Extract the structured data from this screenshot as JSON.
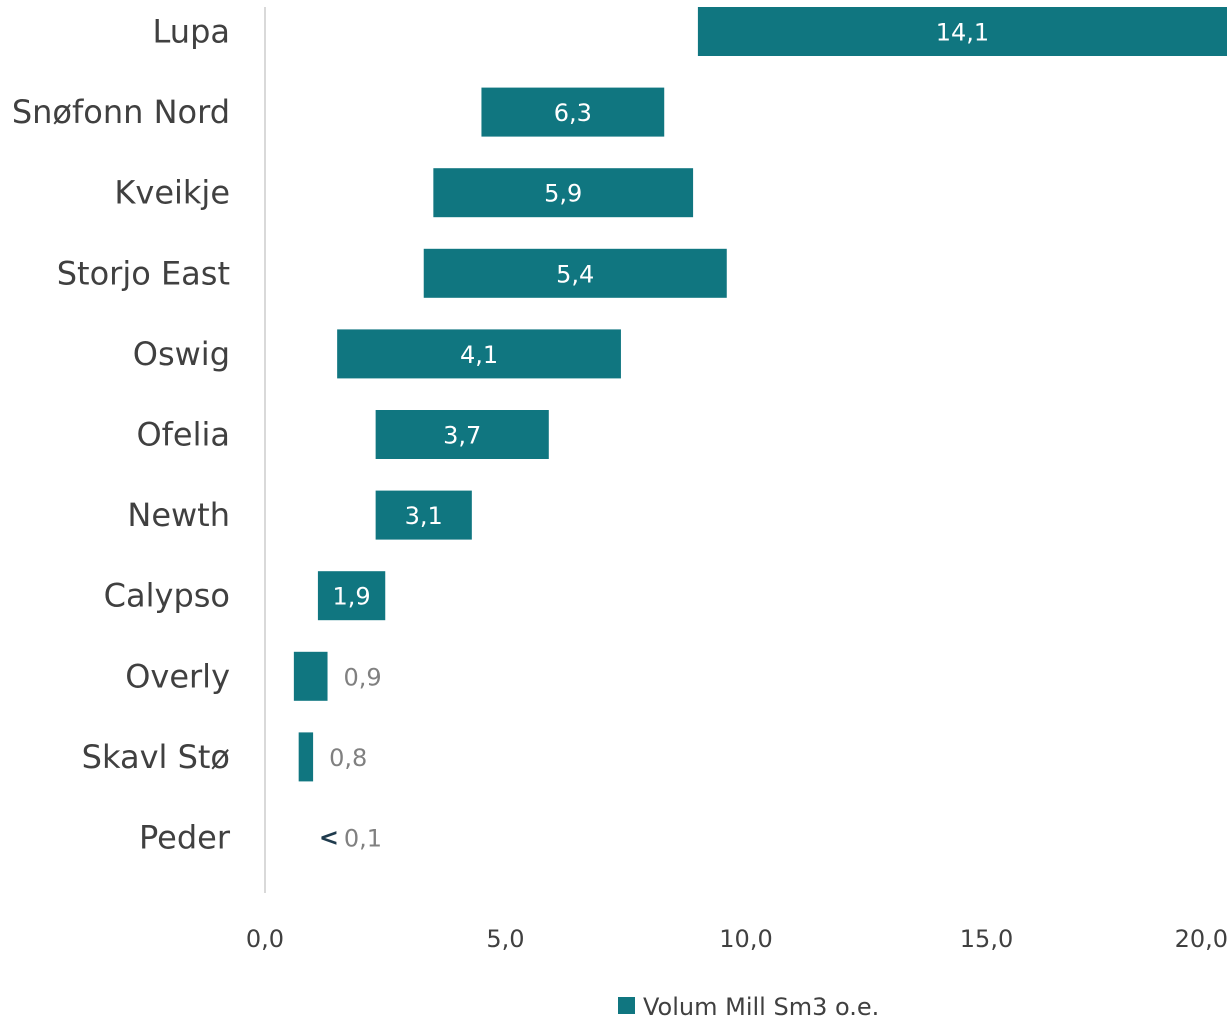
{
  "chart_data": {
    "type": "bar",
    "orientation": "horizontal",
    "floating": true,
    "categories": [
      "Lupa",
      "Snøfonn Nord",
      "Kveikje",
      "Storjo East",
      "Oswig",
      "Ofelia",
      "Newth",
      "Calypso",
      "Overly",
      "Skavl Stø",
      "Peder"
    ],
    "series": [
      {
        "name": "Volum Mill Sm3 o.e.",
        "color": "#107680",
        "start": [
          9.0,
          4.5,
          3.5,
          3.3,
          1.5,
          2.3,
          2.3,
          1.1,
          0.6,
          0.7,
          0.6
        ],
        "end": [
          20.0,
          8.3,
          8.9,
          9.6,
          7.4,
          5.9,
          4.3,
          2.5,
          1.3,
          1.0,
          0.6
        ],
        "labels": [
          "14,1",
          "6,3",
          "5,9",
          "5,4",
          "4,1",
          "3,7",
          "3,1",
          "1,9",
          "0,9",
          "0,8",
          "0,1"
        ],
        "values": [
          14.1,
          6.3,
          5.9,
          5.4,
          4.1,
          3.7,
          3.1,
          1.9,
          0.9,
          0.8,
          0.1
        ]
      }
    ],
    "value_label_position": [
      "inside",
      "inside",
      "inside",
      "inside",
      "inside",
      "inside",
      "inside",
      "inside",
      "outside",
      "outside",
      "outside"
    ],
    "value_label_prefix": [
      "",
      "",
      "",
      "",
      "",
      "",
      "",
      "",
      "",
      "",
      "<"
    ],
    "xlim": [
      0,
      20
    ],
    "xticks": [
      "0,0",
      "5,0",
      "10,0",
      "15,0",
      "20,0"
    ],
    "xtick_values": [
      0,
      5,
      10,
      15,
      20
    ],
    "title": "",
    "xlabel": "",
    "ylabel": "",
    "grid": false,
    "legend_position": "bottom",
    "colors": {
      "bar": "#107680",
      "axis_line": "#d9d9d9",
      "category_text": "#404040",
      "outside_label": "#808080",
      "less_than_marker": "#1f3b4d"
    }
  }
}
